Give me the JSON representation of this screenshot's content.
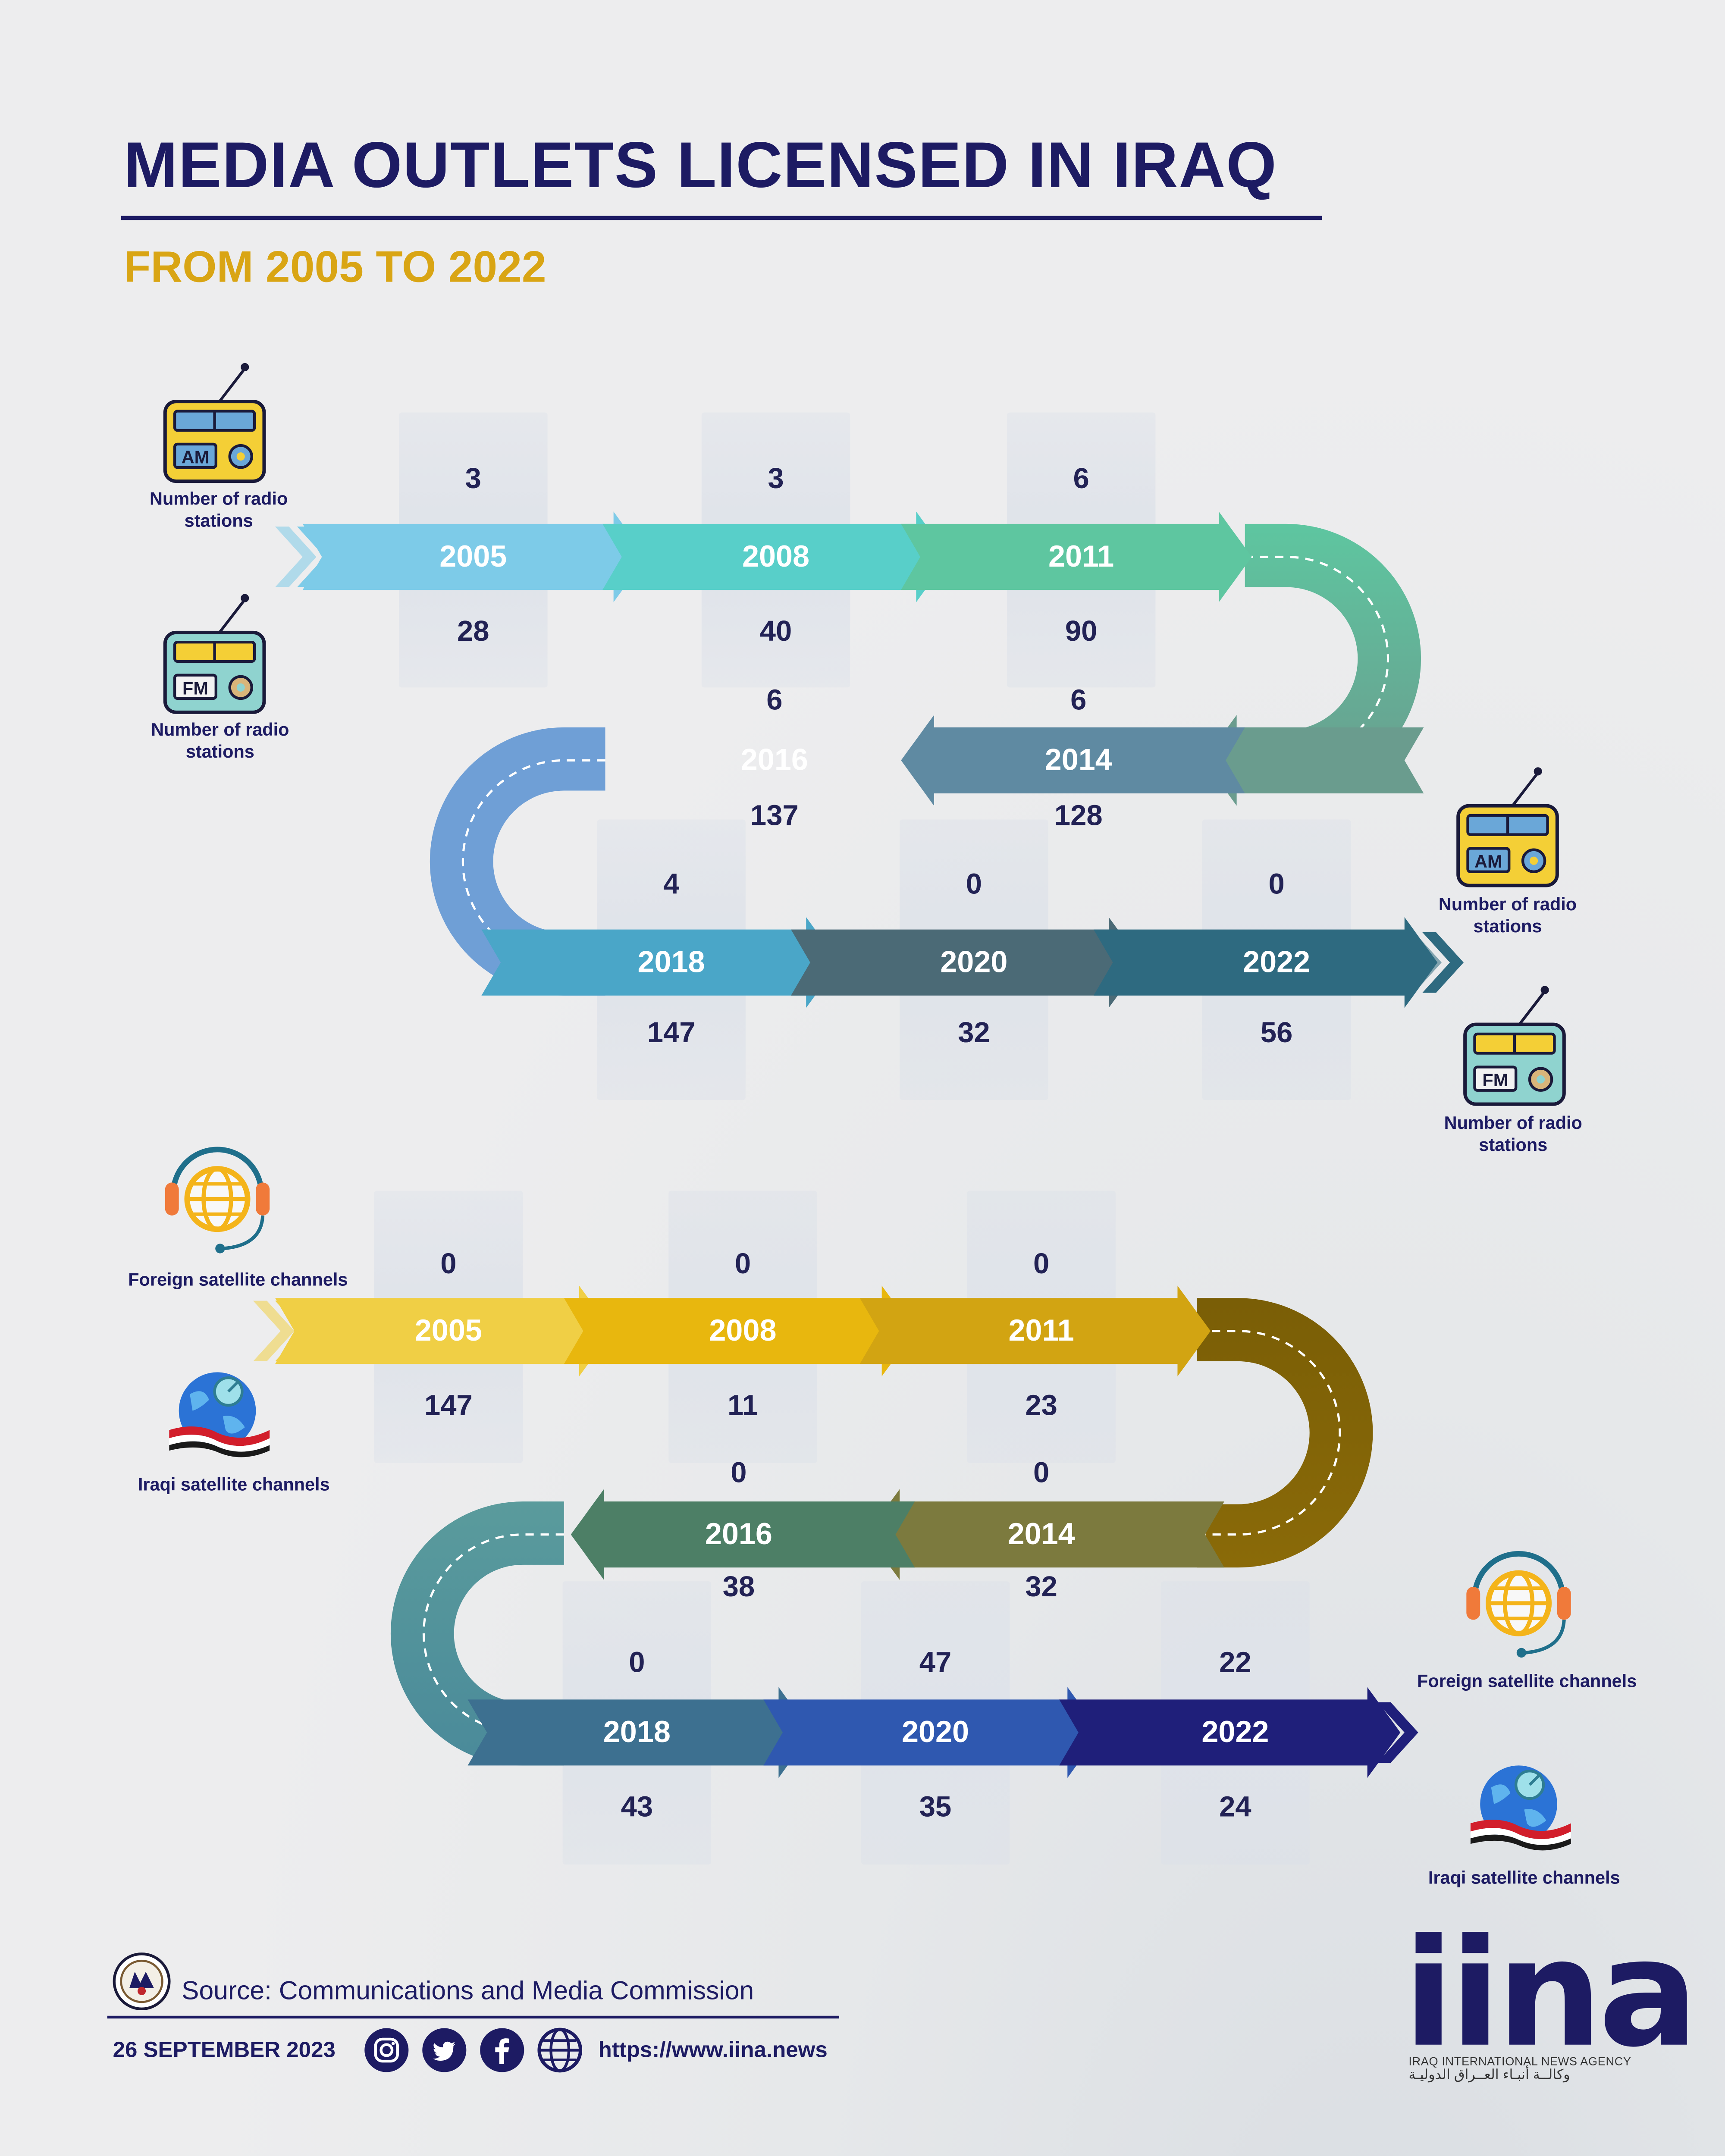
{
  "header": {
    "title": "MEDIA OUTLETS LICENSED IN IRAQ",
    "subtitle": "FROM 2005 TO 2022"
  },
  "legend": {
    "radio_label": "Number of radio stations",
    "foreign_sat_label": "Foreign satellite channels",
    "iraqi_sat_label": "Iraqi satellite channels",
    "am_text": "AM",
    "fm_text": "FM"
  },
  "chart_data": [
    {
      "type": "table",
      "categories": [
        "2005",
        "2008",
        "2011",
        "2014",
        "2016",
        "2018",
        "2020",
        "2022"
      ],
      "series": [
        {
          "name": "AM",
          "values": [
            3,
            3,
            6,
            6,
            6,
            4,
            0,
            0
          ]
        },
        {
          "name": "FM",
          "values": [
            28,
            40,
            90,
            128,
            137,
            147,
            32,
            56
          ]
        }
      ]
    },
    {
      "type": "table",
      "categories": [
        "2005",
        "2008",
        "2011",
        "2014",
        "2016",
        "2018",
        "2020",
        "2022"
      ],
      "series": [
        {
          "name": "Foreign satellite channels",
          "values": [
            0,
            0,
            0,
            0,
            0,
            0,
            47,
            22
          ]
        },
        {
          "name": "Iraqi satellite channels",
          "values": [
            147,
            11,
            23,
            32,
            38,
            43,
            35,
            24
          ]
        }
      ]
    }
  ],
  "footer": {
    "source": "Source: Communications and Media Commission",
    "date": "26 SEPTEMBER 2023",
    "url": "https://www.iina.news",
    "logo": "iina",
    "logo_sub": "IRAQ INTERNATIONAL NEWS AGENCY",
    "logo_ar": "وكالــة أنبـاء العــراق الدوليـة"
  },
  "colors": {
    "navy": "#1d1b63",
    "gold": "#d9a514",
    "radio_track": [
      "#7dcbe8",
      "#58cfc9",
      "#5ec6a0",
      "#6a9c8e",
      "#5f8aa2",
      "#4aa6c8",
      "#4b6a76",
      "#2e6a80"
    ],
    "tv_track": [
      "#f0cf45",
      "#e8b70e",
      "#d2a412",
      "#7c7a3e",
      "#4d7f66",
      "#3d7090",
      "#2f58b0",
      "#1f1f7a"
    ]
  }
}
